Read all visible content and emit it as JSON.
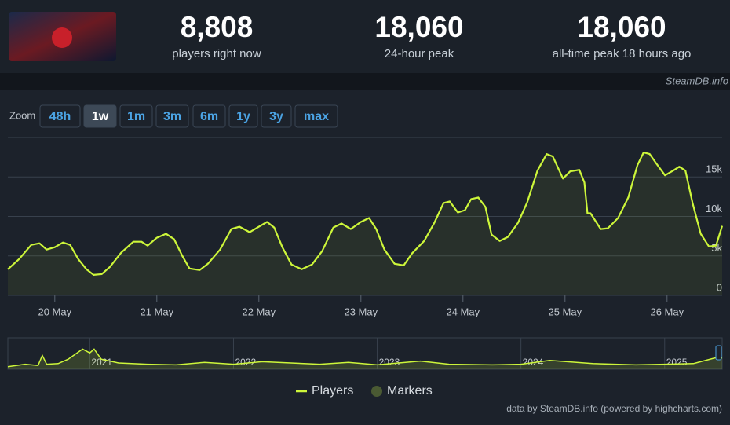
{
  "header": {
    "stats": [
      {
        "value": "8,808",
        "label": "players right now"
      },
      {
        "value": "18,060",
        "label": "24-hour peak"
      },
      {
        "value": "18,060",
        "label": "all-time peak 18 hours ago"
      }
    ],
    "watermark": "SteamDB.info"
  },
  "zoom": {
    "label": "Zoom",
    "buttons": [
      "48h",
      "1w",
      "1m",
      "3m",
      "6m",
      "1y",
      "3y",
      "max"
    ],
    "selected": 1
  },
  "chart_data": {
    "type": "line",
    "x": [
      19.54,
      19.65,
      19.77,
      19.85,
      19.92,
      20.0,
      20.08,
      20.15,
      20.23,
      20.31,
      20.38,
      20.46,
      20.54,
      20.65,
      20.77,
      20.85,
      20.91,
      21.0,
      21.09,
      21.17,
      21.25,
      21.32,
      21.42,
      21.5,
      21.62,
      21.73,
      21.81,
      21.91,
      22.0,
      22.08,
      22.15,
      22.23,
      22.32,
      22.42,
      22.52,
      22.62,
      22.73,
      22.81,
      22.9,
      23.0,
      23.08,
      23.15,
      23.23,
      23.33,
      23.42,
      23.5,
      23.62,
      23.72,
      23.81,
      23.87,
      23.95,
      24.02,
      24.08,
      24.15,
      24.22,
      24.28,
      24.36,
      24.44,
      24.54,
      24.63,
      24.73,
      24.82,
      24.88,
      24.98,
      25.05,
      25.14,
      25.19,
      25.22,
      25.25,
      25.35,
      25.42,
      25.52,
      25.62,
      25.71,
      25.77,
      25.83,
      25.89,
      25.98,
      26.06,
      26.12,
      26.18,
      26.25,
      26.33,
      26.41,
      26.48,
      26.54
    ],
    "series": [
      {
        "name": "Players",
        "color": "#cdf63a",
        "values": [
          3300,
          4600,
          6400,
          6600,
          5800,
          6100,
          6700,
          6400,
          4600,
          3300,
          2600,
          2700,
          3600,
          5400,
          6800,
          6800,
          6300,
          7300,
          7800,
          7100,
          5000,
          3400,
          3200,
          4000,
          5800,
          8400,
          8700,
          8000,
          8700,
          9300,
          8600,
          6100,
          3900,
          3300,
          3900,
          5600,
          8600,
          9100,
          8400,
          9300,
          9800,
          8400,
          5800,
          4000,
          3800,
          5300,
          6900,
          9200,
          11700,
          11900,
          10500,
          10800,
          12200,
          12400,
          11200,
          7700,
          6900,
          7400,
          9200,
          11800,
          15800,
          17900,
          17600,
          14800,
          15700,
          15900,
          14300,
          10400,
          10400,
          8400,
          8500,
          9800,
          12400,
          16500,
          18100,
          17900,
          16800,
          15200,
          15800,
          16300,
          15800,
          11700,
          7800,
          6200,
          6300,
          8800
        ]
      }
    ],
    "xlim": [
      19.54,
      26.54
    ],
    "xticks": [
      {
        "value": 20,
        "label": "20 May"
      },
      {
        "value": 21,
        "label": "21 May"
      },
      {
        "value": 22,
        "label": "22 May"
      },
      {
        "value": 23,
        "label": "23 May"
      },
      {
        "value": 24,
        "label": "24 May"
      },
      {
        "value": 25,
        "label": "25 May"
      },
      {
        "value": 26,
        "label": "26 May"
      }
    ],
    "ylim": [
      0,
      20000
    ],
    "yticks": [
      0,
      {
        "value": 5000,
        "label": "5k"
      },
      {
        "value": 10000,
        "label": "10k"
      },
      {
        "value": 15000,
        "label": "15k"
      }
    ],
    "grid": true,
    "markers": {
      "name": "Markers",
      "color": "#4a5a33"
    },
    "navigator": {
      "xlim": [
        2020.43,
        2025.4
      ],
      "ylim": [
        0,
        25000
      ],
      "xticks": [
        {
          "value": 2021,
          "label": "2021"
        },
        {
          "value": 2022,
          "label": "2022"
        },
        {
          "value": 2023,
          "label": "2023"
        },
        {
          "value": 2024,
          "label": "2024"
        },
        {
          "value": 2025,
          "label": "2025"
        }
      ],
      "x": [
        2020.43,
        2020.55,
        2020.64,
        2020.67,
        2020.7,
        2020.78,
        2020.85,
        2020.9,
        2020.95,
        2021.0,
        2021.03,
        2021.08,
        2021.2,
        2021.4,
        2021.6,
        2021.8,
        2022.0,
        2022.2,
        2022.4,
        2022.6,
        2022.8,
        2023.0,
        2023.3,
        2023.5,
        2023.8,
        2024.0,
        2024.2,
        2024.5,
        2024.8,
        2025.0,
        2025.2,
        2025.35,
        2025.4
      ],
      "values": [
        2000,
        4000,
        3000,
        11000,
        4000,
        4500,
        8000,
        12000,
        16000,
        13000,
        16000,
        8000,
        5000,
        4000,
        3500,
        5500,
        4000,
        6000,
        5000,
        4000,
        5500,
        3500,
        6500,
        4000,
        3500,
        4000,
        7000,
        4500,
        3500,
        4000,
        4500,
        9000,
        9000
      ]
    },
    "credit": "data by SteamDB.info (powered by highcharts.com)"
  }
}
